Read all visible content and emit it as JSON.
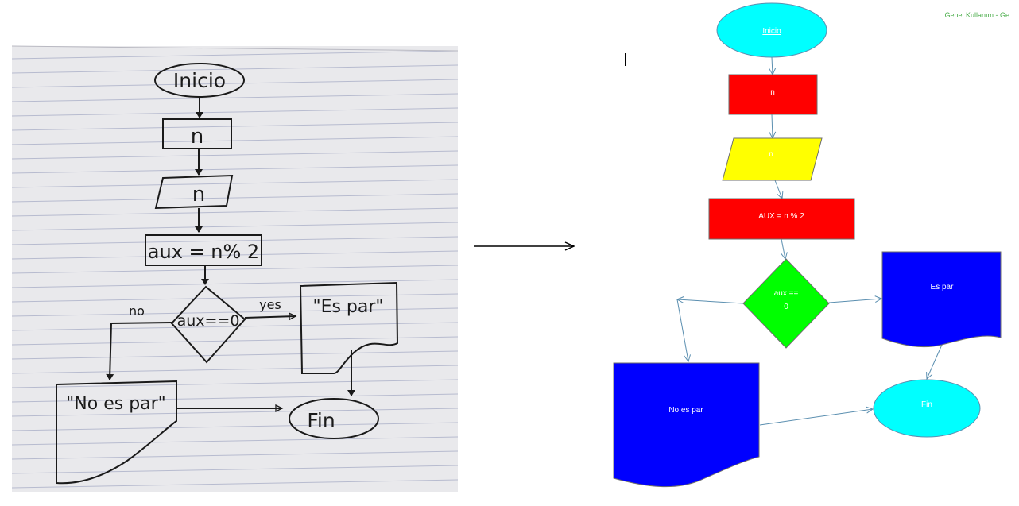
{
  "header": {
    "classification": "Genel Kullanım - Ge"
  },
  "sketch": {
    "inicio": "Inicio",
    "n_box": "n",
    "n_input": "n",
    "assign": "aux = n% 2",
    "decision": "aux==0",
    "label_no": "no",
    "label_yes": "yes",
    "es_par": "\"Es par\"",
    "no_es_par": "\"No es par\"",
    "fin": "Fin"
  },
  "flowchart": {
    "start": "Inicio",
    "process_n": "n",
    "input_n": "n",
    "assign": "AUX = n % 2",
    "decision_line1": "aux ==",
    "decision_line2": "0",
    "es_par": "Es par",
    "no_es_par": "No es par",
    "fin": "Fin"
  },
  "colors": {
    "cyan": "#00ffff",
    "red": "#ff0000",
    "yellow": "#ffff00",
    "green": "#00ff00",
    "blue": "#0000ff",
    "connector": "#5b8fb0",
    "ink": "#1a1a1a"
  }
}
